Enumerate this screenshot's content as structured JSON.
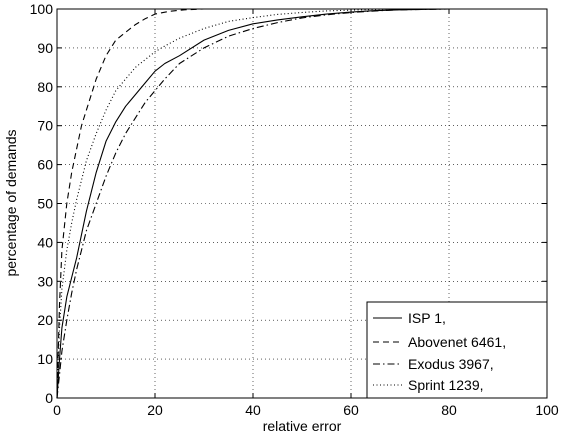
{
  "chart_data": {
    "type": "line",
    "title": "",
    "xlabel": "relative error",
    "ylabel": "percentage of demands",
    "xlim": [
      0,
      100
    ],
    "ylim": [
      0,
      100
    ],
    "xticks": [
      0,
      20,
      40,
      60,
      80,
      100
    ],
    "yticks": [
      0,
      10,
      20,
      30,
      40,
      50,
      60,
      70,
      80,
      90,
      100
    ],
    "grid": true,
    "legend_position": "bottom-right",
    "series": [
      {
        "name": "ISP 1,",
        "style": "solid",
        "x": [
          0,
          0.5,
          1,
          2,
          3,
          4,
          5,
          6,
          8,
          10,
          12,
          14,
          16,
          18,
          20,
          22,
          25,
          30,
          35,
          40,
          45,
          50,
          55,
          60,
          65,
          70,
          80,
          90
        ],
        "y": [
          0,
          10,
          18,
          26,
          31,
          36,
          42,
          48,
          58,
          66,
          71,
          75,
          78,
          81,
          84,
          86,
          88,
          92,
          94.5,
          96.2,
          97.2,
          98,
          98.7,
          99.2,
          99.6,
          99.8,
          100,
          100
        ]
      },
      {
        "name": "Abovenet 6461,",
        "style": "dashed",
        "x": [
          0,
          0.5,
          1,
          2,
          3,
          4,
          5,
          6,
          7,
          8,
          9,
          10,
          11,
          12,
          14,
          16,
          18,
          20,
          23,
          26,
          30,
          40,
          60,
          80
        ],
        "y": [
          0,
          24,
          38,
          50,
          58,
          64,
          70,
          74,
          78,
          82,
          85,
          88,
          90,
          92,
          94,
          96,
          97.5,
          98.7,
          99.4,
          99.8,
          100,
          100,
          100,
          100
        ]
      },
      {
        "name": "Exodus 3967,",
        "style": "dashdot",
        "x": [
          0,
          0.5,
          1,
          2,
          3,
          4,
          5,
          6,
          8,
          10,
          12,
          14,
          16,
          18,
          20,
          22,
          25,
          30,
          35,
          40,
          45,
          50,
          55,
          60,
          65,
          70,
          80,
          90
        ],
        "y": [
          0,
          6,
          12,
          20,
          27,
          33,
          38,
          43,
          50,
          57,
          63,
          68,
          72,
          76,
          79,
          82,
          86,
          90,
          93,
          95,
          96.5,
          97.7,
          98.5,
          99.1,
          99.5,
          99.8,
          100,
          100
        ]
      },
      {
        "name": "Sprint 1239,",
        "style": "dotted",
        "x": [
          0,
          0.5,
          1,
          2,
          3,
          4,
          5,
          6,
          8,
          10,
          12,
          14,
          16,
          18,
          20,
          22,
          25,
          30,
          35,
          40,
          45,
          50,
          55,
          60,
          65,
          70,
          80,
          90
        ],
        "y": [
          0,
          18,
          28,
          38,
          45,
          51,
          56,
          61,
          68,
          74,
          79,
          82,
          85,
          87,
          89,
          90.5,
          92.5,
          95,
          96.8,
          97.8,
          98.6,
          99.1,
          99.5,
          99.7,
          99.9,
          100,
          100,
          100
        ]
      }
    ]
  }
}
